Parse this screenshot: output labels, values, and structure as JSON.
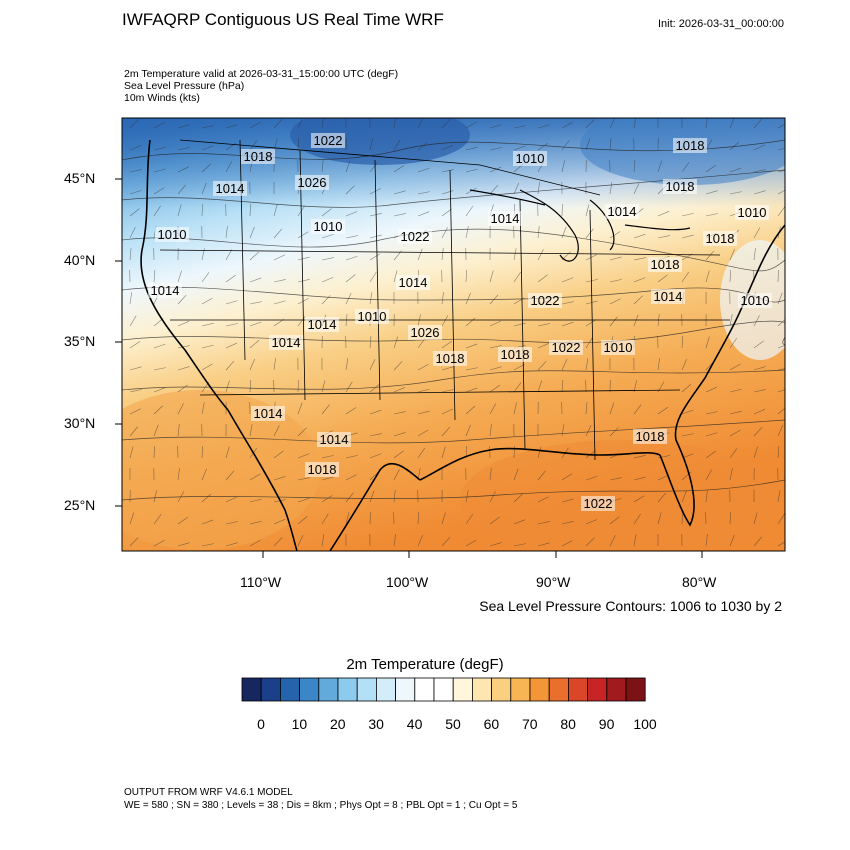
{
  "header": {
    "title": "IWFAQRP Contiguous US Real Time WRF",
    "init": "Init: 2026-03-31_00:00:00",
    "fields": [
      "2m Temperature valid at 2026-03-31_15:00:00 UTC   (degF)",
      "Sea Level Pressure   (hPa)",
      "10m Winds   (kts)"
    ]
  },
  "map": {
    "lat_labels": [
      "45°N",
      "40°N",
      "35°N",
      "30°N",
      "25°N"
    ],
    "lon_labels": [
      "110°W",
      "100°W",
      "90°W",
      "80°W"
    ],
    "isobar_labels": [
      "1022",
      "1018",
      "1010",
      "1018",
      "1026",
      "1014",
      "1018",
      "1014",
      "1014",
      "1010",
      "1010",
      "1022",
      "1010",
      "1018",
      "1014",
      "1014",
      "1022",
      "1014",
      "1010",
      "1014",
      "1010",
      "1026",
      "1018",
      "1022",
      "1010",
      "1014",
      "1014",
      "1018",
      "1018",
      "1022",
      "1014",
      "1018",
      "1018"
    ],
    "colors": {
      "land_border": "#000000",
      "cold": "#2a6cb8",
      "cool": "#9fd0f0",
      "neutral": "#f4f4f4",
      "warm": "#f7c270",
      "hot": "#f08a32"
    }
  },
  "slp_note": "Sea Level Pressure Contours: 1006 to 1030 by 2",
  "colorbar": {
    "title": "2m Temperature  (degF)",
    "colors": [
      "#16265e",
      "#1c3f8a",
      "#2563ad",
      "#3b86c6",
      "#62aadc",
      "#8ccbee",
      "#b3e0f6",
      "#d3eefa",
      "#eef8fc",
      "#ffffff",
      "#ffffff",
      "#fff6dc",
      "#fde6b0",
      "#fbcf80",
      "#f7b553",
      "#f39637",
      "#ea6f2c",
      "#dc4628",
      "#c72426",
      "#a01a1e",
      "#7a1216"
    ],
    "ticks": [
      "0",
      "10",
      "20",
      "30",
      "40",
      "50",
      "60",
      "70",
      "80",
      "90",
      "100"
    ]
  },
  "footer": {
    "line1": "OUTPUT FROM WRF V4.6.1 MODEL",
    "line2": "WE = 580 ; SN = 380 ; Levels = 38 ; Dis = 8km ; Phys Opt = 8 ; PBL Opt = 1 ; Cu Opt = 5"
  }
}
